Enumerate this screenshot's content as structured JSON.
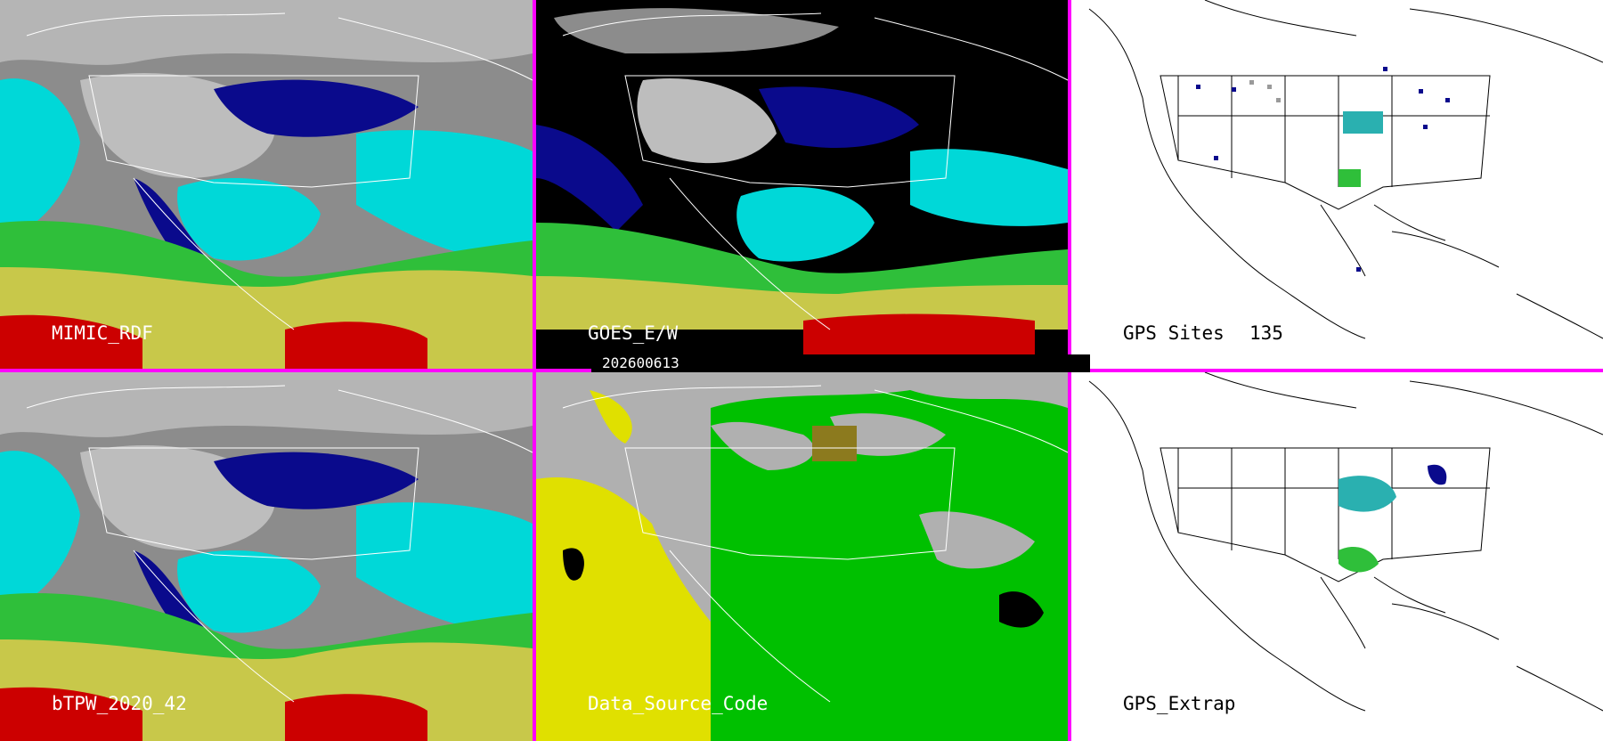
{
  "panels": {
    "top_left": {
      "label": "MIMIC_RDF"
    },
    "top_middle": {
      "label": "GOES_E/W",
      "date": "202600613"
    },
    "top_right": {
      "label": "GPS Sites",
      "count": "135"
    },
    "bottom_left": {
      "label": "bTPW_2020_42"
    },
    "bottom_middle": {
      "label": "Data_Source_Code"
    },
    "bottom_right": {
      "label": "GPS_Extrap"
    }
  },
  "colors": {
    "divider": "#ff00ff",
    "tpw_scale": [
      "#ffffff",
      "#9a9a9a",
      "#0a0a8c",
      "#00e5e5",
      "#2fbf3a",
      "#c8c84a",
      "#ff0000"
    ],
    "source_codes": [
      "#b0b0b0",
      "#e0e000",
      "#00c000",
      "#8c7a1e",
      "#000000"
    ]
  }
}
